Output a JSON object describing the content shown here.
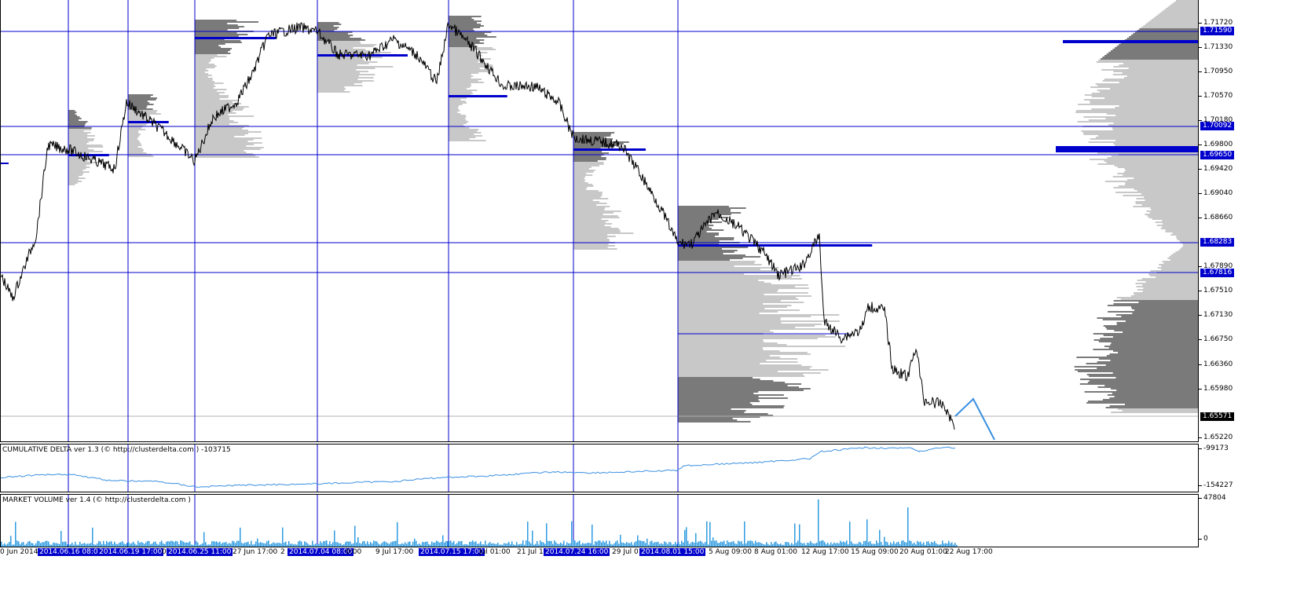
{
  "colors": {
    "vline": "#0000cc",
    "hline": "#0000cc",
    "price": "#000000",
    "profile_light": "#c8c8c8",
    "profile_dark": "#7a7a7a",
    "poc": "#0000cc",
    "delta": "#3a8fe0",
    "volume": "#2e9be0",
    "projection": "#3a8fe0"
  },
  "price_axis": {
    "ticks": [
      "1.71720",
      "1.71330",
      "1.70950",
      "1.70570",
      "1.70180",
      "1.69800",
      "1.69420",
      "1.69040",
      "1.68660",
      "1.67890",
      "1.67510",
      "1.67130",
      "1.66750",
      "1.66360",
      "1.65980",
      "1.65220"
    ],
    "levels": [
      "1.71590",
      "1.70092",
      "1.69650",
      "1.68283",
      "1.67816"
    ],
    "current": "1.65571"
  },
  "delta_panel": {
    "title": "CUMULATIVE DELTA ver 1.3 (© http://clusterdelta.com ) -103715",
    "max_label": "-99173",
    "min_label": "-154227"
  },
  "volume_panel": {
    "title": "MARKET VOLUME ver 1.4 (© http://clusterdelta.com )",
    "max_label": "47804",
    "min_label": "0"
  },
  "time_axis": {
    "labels": [
      {
        "text": "0 Jun 2014",
        "selected": false
      },
      {
        "text": "2014.06.16 08:00",
        "selected": true
      },
      {
        "text": "2014.06.19 17:00",
        "selected": true
      },
      {
        "text": "0",
        "selected": false
      },
      {
        "text": "2014.06.25 11:00",
        "selected": true
      },
      {
        "text": "27 Jun 17:00",
        "selected": false
      },
      {
        "text": "2",
        "selected": false
      },
      {
        "text": "2014.07.04 08:00",
        "selected": true
      },
      {
        "text": "0:00",
        "selected": false
      },
      {
        "text": "9 Jul 17:00",
        "selected": false
      },
      {
        "text": "2014.07.15 17:00",
        "selected": true
      },
      {
        "text": "Jul 01:00",
        "selected": false
      },
      {
        "text": "21 Jul 1",
        "selected": false
      },
      {
        "text": "2014.07.24 16:00",
        "selected": true
      },
      {
        "text": "29 Jul 01:00",
        "selected": false
      },
      {
        "text": "2014.08.01 15:00",
        "selected": true
      },
      {
        "text": "5 Aug 09:00",
        "selected": false
      },
      {
        "text": "8 Aug 01:00",
        "selected": false
      },
      {
        "text": "12 Aug 17:00",
        "selected": false
      },
      {
        "text": "15 Aug 09:00",
        "selected": false
      },
      {
        "text": "20 Aug 01:00",
        "selected": false
      },
      {
        "text": "22 Aug 17:00",
        "selected": false
      }
    ]
  }
}
